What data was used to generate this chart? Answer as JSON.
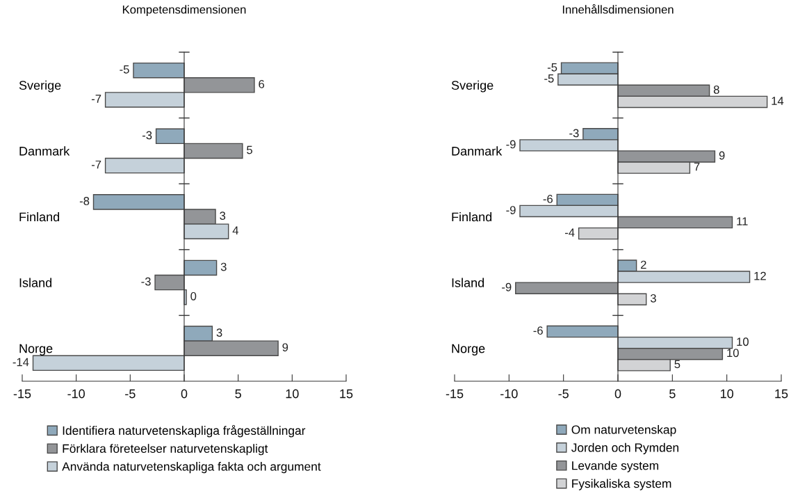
{
  "chart_data": [
    {
      "type": "bar",
      "orientation": "horizontal",
      "title": "Kompetensdimensionen",
      "categories": [
        "Sverige",
        "Danmark",
        "Finland",
        "Island",
        "Norge"
      ],
      "xlim": [
        -15,
        15
      ],
      "xticks": [
        -15,
        -10,
        -5,
        0,
        5,
        10,
        15
      ],
      "legend": "bottom",
      "series": [
        {
          "name": "Identifiera naturvetenskapliga frågeställningar",
          "color": "#8fa9bb",
          "values": [
            -4.7,
            -2.6,
            -8.4,
            3.0,
            2.6
          ],
          "value_labels": [
            "-5",
            "-3",
            "-8",
            "3",
            "3"
          ]
        },
        {
          "name": "Förklara företeelser naturvetenskapligt",
          "color": "#939598",
          "values": [
            6.5,
            5.4,
            2.9,
            -2.7,
            8.7
          ],
          "value_labels": [
            "6",
            "5",
            "3",
            "-3",
            "9"
          ]
        },
        {
          "name": "Använda naturvetenskapliga fakta och argument",
          "color": "#c5d1da",
          "values": [
            -7.3,
            -7.3,
            4.1,
            0.2,
            -14.0
          ],
          "value_labels": [
            "-7",
            "-7",
            "4",
            "0",
            "-14"
          ]
        }
      ]
    },
    {
      "type": "bar",
      "orientation": "horizontal",
      "title": "Innehållsdimensionen",
      "categories": [
        "Sverige",
        "Danmark",
        "Finland",
        "Island",
        "Norge"
      ],
      "xlim": [
        -15,
        15
      ],
      "xticks": [
        -15,
        -10,
        -5,
        0,
        5,
        10,
        15
      ],
      "legend": "bottom",
      "series": [
        {
          "name": "Om naturvetenskap",
          "color": "#8fa9bb",
          "values": [
            -5.2,
            -3.2,
            -5.6,
            1.7,
            -6.5
          ],
          "value_labels": [
            "-5",
            "-3",
            "-6",
            "2",
            "-6"
          ]
        },
        {
          "name": "Jorden och Rymden",
          "color": "#c5d1da",
          "values": [
            -5.5,
            -9.0,
            -9.0,
            12.1,
            10.5
          ],
          "value_labels": [
            "-5",
            "-9",
            "-9",
            "12",
            "10"
          ]
        },
        {
          "name": "Levande system",
          "color": "#939598",
          "values": [
            8.4,
            8.9,
            10.5,
            -9.4,
            9.6
          ],
          "value_labels": [
            "8",
            "9",
            "11",
            "-9",
            "10"
          ]
        },
        {
          "name": "Fysikaliska system",
          "color": "#d2d3d5",
          "values": [
            13.7,
            6.6,
            -3.6,
            2.6,
            4.8
          ],
          "value_labels": [
            "14",
            "7",
            "-4",
            "3",
            "5"
          ]
        }
      ]
    }
  ]
}
